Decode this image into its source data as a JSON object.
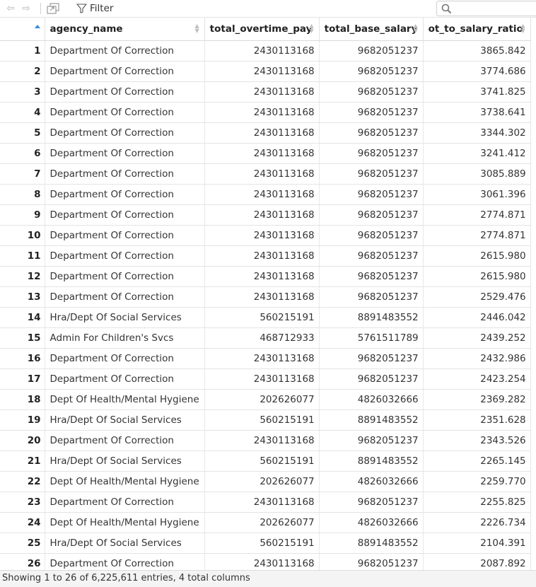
{
  "toolbar": {
    "back_icon": "arrow-left-icon",
    "forward_icon": "arrow-right-icon",
    "popout_icon": "popout-window-icon",
    "filter_label": "Filter",
    "search": {
      "value": "",
      "placeholder": ""
    }
  },
  "table": {
    "columns": [
      "agency_name",
      "total_overtime_pay",
      "total_base_salary",
      "ot_to_salary_ratio"
    ],
    "rows": [
      {
        "n": "1",
        "agency": "Department Of Correction",
        "ot": "2430113168",
        "base": "9682051237",
        "ratio": "3865.842"
      },
      {
        "n": "2",
        "agency": "Department Of Correction",
        "ot": "2430113168",
        "base": "9682051237",
        "ratio": "3774.686"
      },
      {
        "n": "3",
        "agency": "Department Of Correction",
        "ot": "2430113168",
        "base": "9682051237",
        "ratio": "3741.825"
      },
      {
        "n": "4",
        "agency": "Department Of Correction",
        "ot": "2430113168",
        "base": "9682051237",
        "ratio": "3738.641"
      },
      {
        "n": "5",
        "agency": "Department Of Correction",
        "ot": "2430113168",
        "base": "9682051237",
        "ratio": "3344.302"
      },
      {
        "n": "6",
        "agency": "Department Of Correction",
        "ot": "2430113168",
        "base": "9682051237",
        "ratio": "3241.412"
      },
      {
        "n": "7",
        "agency": "Department Of Correction",
        "ot": "2430113168",
        "base": "9682051237",
        "ratio": "3085.889"
      },
      {
        "n": "8",
        "agency": "Department Of Correction",
        "ot": "2430113168",
        "base": "9682051237",
        "ratio": "3061.396"
      },
      {
        "n": "9",
        "agency": "Department Of Correction",
        "ot": "2430113168",
        "base": "9682051237",
        "ratio": "2774.871"
      },
      {
        "n": "10",
        "agency": "Department Of Correction",
        "ot": "2430113168",
        "base": "9682051237",
        "ratio": "2774.871"
      },
      {
        "n": "11",
        "agency": "Department Of Correction",
        "ot": "2430113168",
        "base": "9682051237",
        "ratio": "2615.980"
      },
      {
        "n": "12",
        "agency": "Department Of Correction",
        "ot": "2430113168",
        "base": "9682051237",
        "ratio": "2615.980"
      },
      {
        "n": "13",
        "agency": "Department Of Correction",
        "ot": "2430113168",
        "base": "9682051237",
        "ratio": "2529.476"
      },
      {
        "n": "14",
        "agency": "Hra/Dept Of Social Services",
        "ot": "560215191",
        "base": "8891483552",
        "ratio": "2446.042"
      },
      {
        "n": "15",
        "agency": "Admin For Children's Svcs",
        "ot": "468712933",
        "base": "5761511789",
        "ratio": "2439.252"
      },
      {
        "n": "16",
        "agency": "Department Of Correction",
        "ot": "2430113168",
        "base": "9682051237",
        "ratio": "2432.986"
      },
      {
        "n": "17",
        "agency": "Department Of Correction",
        "ot": "2430113168",
        "base": "9682051237",
        "ratio": "2423.254"
      },
      {
        "n": "18",
        "agency": "Dept Of Health/Mental Hygiene",
        "ot": "202626077",
        "base": "4826032666",
        "ratio": "2369.282"
      },
      {
        "n": "19",
        "agency": "Hra/Dept Of Social Services",
        "ot": "560215191",
        "base": "8891483552",
        "ratio": "2351.628"
      },
      {
        "n": "20",
        "agency": "Department Of Correction",
        "ot": "2430113168",
        "base": "9682051237",
        "ratio": "2343.526"
      },
      {
        "n": "21",
        "agency": "Hra/Dept Of Social Services",
        "ot": "560215191",
        "base": "8891483552",
        "ratio": "2265.145"
      },
      {
        "n": "22",
        "agency": "Dept Of Health/Mental Hygiene",
        "ot": "202626077",
        "base": "4826032666",
        "ratio": "2259.770"
      },
      {
        "n": "23",
        "agency": "Department Of Correction",
        "ot": "2430113168",
        "base": "9682051237",
        "ratio": "2255.825"
      },
      {
        "n": "24",
        "agency": "Dept Of Health/Mental Hygiene",
        "ot": "202626077",
        "base": "4826032666",
        "ratio": "2226.734"
      },
      {
        "n": "25",
        "agency": "Hra/Dept Of Social Services",
        "ot": "560215191",
        "base": "8891483552",
        "ratio": "2104.391"
      },
      {
        "n": "26",
        "agency": "Department Of Correction",
        "ot": "2430113168",
        "base": "9682051237",
        "ratio": "2087.892"
      }
    ]
  },
  "status": "Showing 1 to 26 of 6,225,611 entries, 4 total columns",
  "colors": {
    "sort_active": "#3a86e0",
    "border": "#e4e4e4",
    "status_bg": "#f4f4f4"
  }
}
